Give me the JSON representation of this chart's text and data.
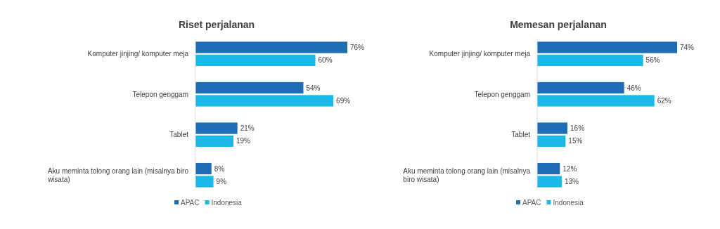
{
  "chart_data": [
    {
      "type": "bar",
      "orientation": "horizontal",
      "title": "Riset perjalanan",
      "categories": [
        "Komputer jinjing/ komputer meja",
        "Telepon genggam",
        "Tablet",
        "Aku meminta tolong orang lain (misalnya biro wisata)"
      ],
      "series": [
        {
          "name": "APAC",
          "color": "#1f6db4",
          "values": [
            76,
            54,
            21,
            8
          ],
          "value_labels": [
            "76%",
            "54%",
            "21%",
            "8%"
          ]
        },
        {
          "name": "Indonesia",
          "color": "#1cb8e8",
          "values": [
            60,
            69,
            19,
            9
          ],
          "value_labels": [
            "60%",
            "69%",
            "19%",
            "9%"
          ]
        }
      ],
      "legend": "bottom"
    },
    {
      "type": "bar",
      "orientation": "horizontal",
      "title": "Memesan perjalanan",
      "categories": [
        "Komputer jinjing/ komputer meja",
        "Telepon genggam",
        "Tablet",
        "Aku meminta tolong orang lain (misalnya biro wisata)"
      ],
      "series": [
        {
          "name": "APAC",
          "color": "#1f6db4",
          "values": [
            74,
            46,
            16,
            12
          ],
          "value_labels": [
            "74%",
            "46%",
            "16%",
            "12%"
          ]
        },
        {
          "name": "Indonesia",
          "color": "#1cb8e8",
          "values": [
            56,
            62,
            15,
            13
          ],
          "value_labels": [
            "56%",
            "62%",
            "15%",
            "13%"
          ]
        }
      ],
      "legend": "bottom"
    }
  ]
}
